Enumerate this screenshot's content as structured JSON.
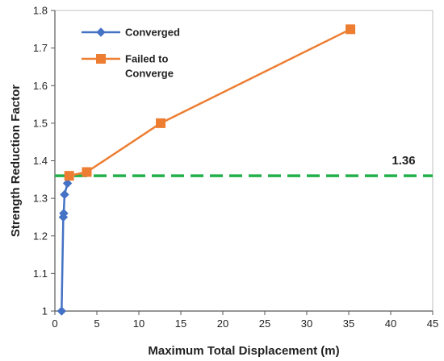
{
  "chart_data": {
    "type": "line",
    "xlabel": "Maximum Total Displacement (m)",
    "ylabel": "Strength Reduction Factor",
    "xlim": [
      0,
      45
    ],
    "ylim": [
      1,
      1.8
    ],
    "xticks": [
      0,
      5,
      10,
      15,
      20,
      25,
      30,
      35,
      40,
      45
    ],
    "yticks": [
      1,
      1.1,
      1.2,
      1.3,
      1.4,
      1.5,
      1.6,
      1.7,
      1.8
    ],
    "grid": false,
    "legend_position": "top-left",
    "series": [
      {
        "name": "Converged",
        "color": "#4472C4",
        "marker": "diamond",
        "x": [
          0.8,
          1.0,
          1.05,
          1.15,
          1.5
        ],
        "y": [
          1.0,
          1.25,
          1.26,
          1.31,
          1.34
        ]
      },
      {
        "name": "Failed to Converge",
        "legend_lines": [
          "Failed to",
          "Converge"
        ],
        "color": "#ED7D31",
        "marker": "square",
        "x": [
          1.7,
          3.8,
          12.6,
          35.2
        ],
        "y": [
          1.36,
          1.37,
          1.5,
          1.75
        ]
      }
    ],
    "reference_line": {
      "y": 1.36,
      "label": "1.36",
      "color": "#22B04B",
      "style": "dashed"
    }
  }
}
